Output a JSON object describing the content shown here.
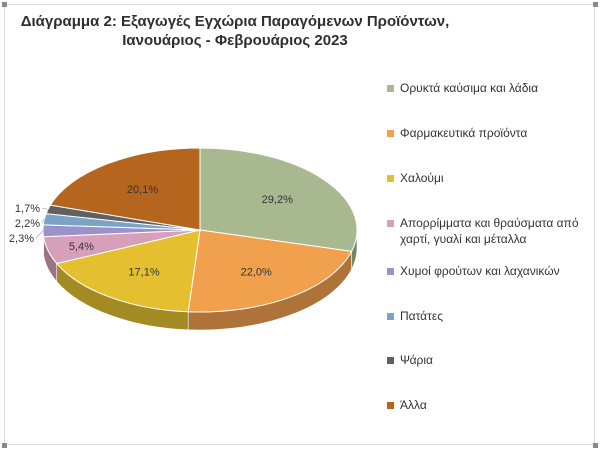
{
  "chart_data": {
    "type": "pie",
    "title_line1": "Διάγραμμα 2: Εξαγωγές Εγχώρια Παραγόμενων Προϊόντων,",
    "title_line2": "Ιανουάριος - Φεβρουάριος 2023",
    "legend_position": "right",
    "slices": [
      {
        "name": "Ορυκτά καύσιμα και λάδια",
        "value": 29.2,
        "label": "29,2%",
        "color": "#a8b88f"
      },
      {
        "name": "Φαρμακευτικά προϊόντα",
        "value": 22.0,
        "label": "22,0%",
        "color": "#f1a04e"
      },
      {
        "name": "Χαλούμι",
        "value": 17.1,
        "label": "17,1%",
        "color": "#e4bf2f"
      },
      {
        "name": "Απορρίμματα και θραύσματα από χαρτί, γυαλί και μέταλλα",
        "value": 5.4,
        "label": "5,4%",
        "color": "#d8a0b8"
      },
      {
        "name": "Χυμοί φρούτων και λαχανικών",
        "value": 2.3,
        "label": "2,3%",
        "color": "#9a92c8"
      },
      {
        "name": "Πατάτες",
        "value": 2.2,
        "label": "2,2%",
        "color": "#7ba3c7"
      },
      {
        "name": "Ψάρια",
        "value": 1.7,
        "label": "1,7%",
        "color": "#606060"
      },
      {
        "name": "Άλλα",
        "value": 20.1,
        "label": "20,1%",
        "color": "#b5651d"
      }
    ]
  }
}
